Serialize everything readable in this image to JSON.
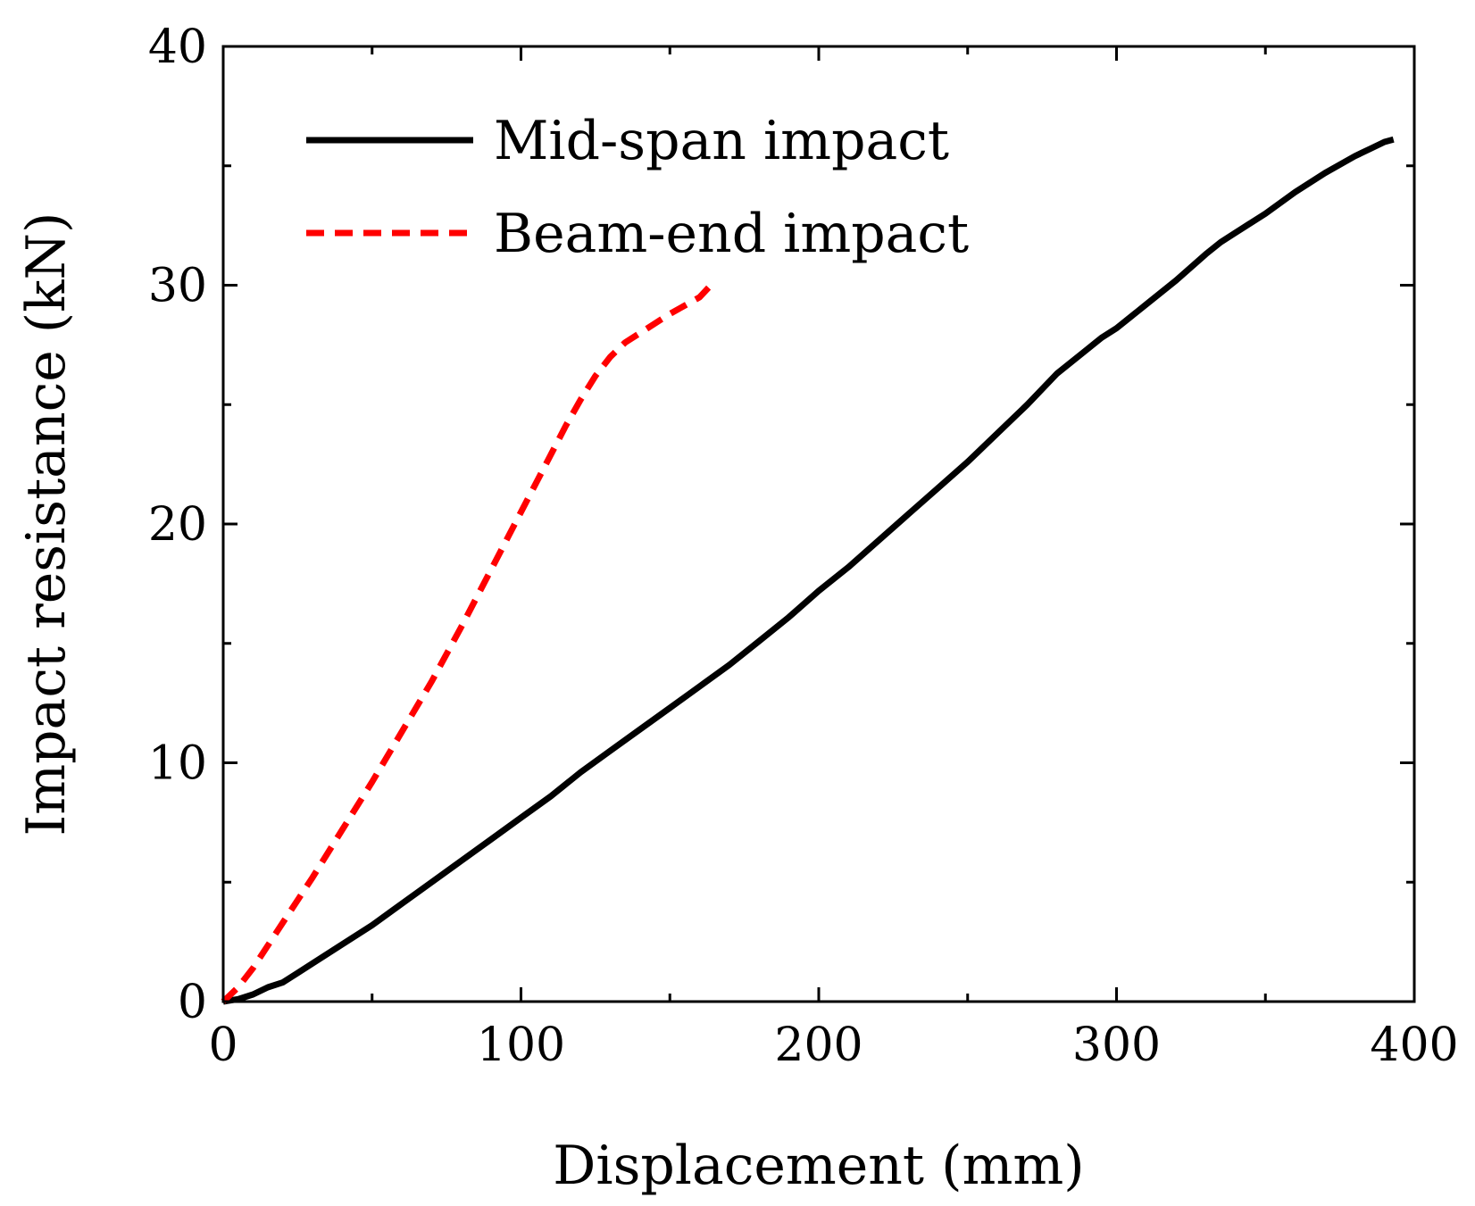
{
  "chart_data": {
    "type": "line",
    "title": "",
    "xlabel": "Displacement (mm)",
    "ylabel": "Impact resistance (kN)",
    "xlim": [
      0,
      400
    ],
    "ylim": [
      0,
      40
    ],
    "x_ticks": [
      0,
      100,
      200,
      300,
      400
    ],
    "y_ticks": [
      0,
      10,
      20,
      30,
      40
    ],
    "x_tick_labels": [
      "0",
      "100",
      "200",
      "300",
      "400"
    ],
    "y_tick_labels": [
      "0",
      "10",
      "20",
      "30",
      "40"
    ],
    "x_minor_step": 50,
    "y_minor_step": 5,
    "grid": false,
    "legend_position": "top-left",
    "series": [
      {
        "name": "Mid-span impact",
        "color": "#000000",
        "style": "solid",
        "x": [
          0,
          5,
          10,
          15,
          20,
          25,
          30,
          40,
          50,
          60,
          70,
          80,
          90,
          100,
          110,
          120,
          130,
          140,
          150,
          160,
          170,
          180,
          190,
          200,
          210,
          220,
          230,
          240,
          250,
          260,
          270,
          280,
          290,
          295,
          300,
          310,
          320,
          330,
          335,
          340,
          345,
          350,
          360,
          370,
          380,
          385,
          390,
          393
        ],
        "values": [
          0,
          0.1,
          0.3,
          0.6,
          0.8,
          1.2,
          1.6,
          2.4,
          3.2,
          4.1,
          5.0,
          5.9,
          6.8,
          7.7,
          8.6,
          9.6,
          10.5,
          11.4,
          12.3,
          13.2,
          14.1,
          15.1,
          16.1,
          17.2,
          18.2,
          19.3,
          20.4,
          21.5,
          22.6,
          23.8,
          25.0,
          26.3,
          27.3,
          27.8,
          28.2,
          29.2,
          30.2,
          31.3,
          31.8,
          32.2,
          32.6,
          33.0,
          33.9,
          34.7,
          35.4,
          35.7,
          36.0,
          36.1
        ]
      },
      {
        "name": "Beam-end impact",
        "color": "#ff0000",
        "style": "dashed",
        "x": [
          0,
          5,
          10,
          20,
          30,
          40,
          50,
          60,
          70,
          80,
          90,
          100,
          110,
          115,
          120,
          125,
          130,
          135,
          140,
          150,
          160,
          163
        ],
        "values": [
          0,
          0.6,
          1.4,
          3.3,
          5.2,
          7.2,
          9.2,
          11.3,
          13.4,
          15.7,
          18.1,
          20.5,
          22.9,
          24.1,
          25.2,
          26.2,
          27.0,
          27.6,
          28.0,
          28.8,
          29.5,
          29.9
        ]
      }
    ]
  }
}
